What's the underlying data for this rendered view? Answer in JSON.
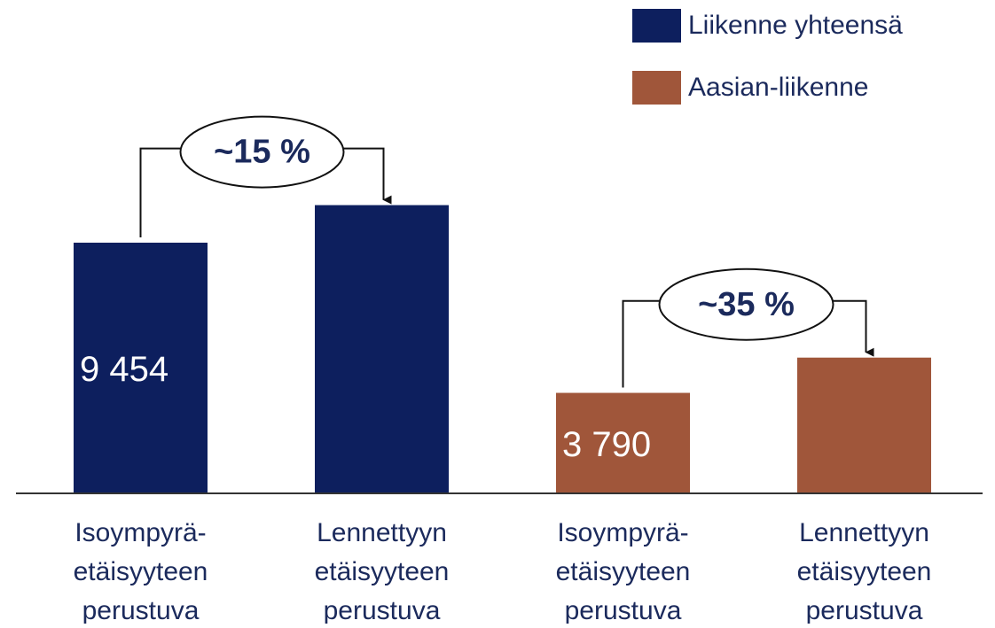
{
  "chart_data": {
    "type": "bar",
    "categories": [
      [
        "Isoympyrä-",
        "etäisyyteen",
        "perustuva"
      ],
      [
        "Lennettyyn",
        "etäisyyteen",
        "perustuva"
      ],
      [
        "Isoympyrä-",
        "etäisyyteen",
        "perustuva"
      ],
      [
        "Lennettyyn",
        "etäisyyteen",
        "perustuva"
      ]
    ],
    "series": [
      {
        "name": "Liikenne yhteensä",
        "color": "#0d1f5e",
        "values": [
          9454,
          10870,
          null,
          null
        ],
        "value_labels": [
          "9 454",
          null,
          null,
          null
        ]
      },
      {
        "name": "Aasian-liikenne",
        "color": "#a0563a",
        "values": [
          null,
          null,
          3790,
          5120
        ],
        "value_labels": [
          null,
          null,
          "3 790",
          null
        ]
      }
    ],
    "annotations": [
      "~15 %",
      "~35 %"
    ],
    "ylim": [
      0,
      16000
    ]
  }
}
